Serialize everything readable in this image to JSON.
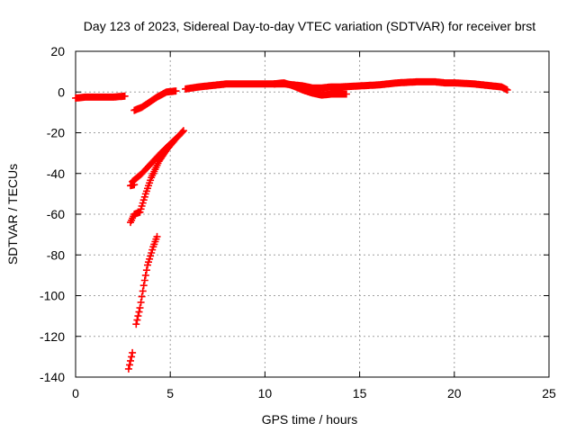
{
  "chart_data": {
    "type": "scatter",
    "title": "Day 123 of 2023, Sidereal Day-to-day VTEC variation (SDTVAR) for receiver brst",
    "xlabel": "GPS time / hours",
    "ylabel": "SDTVAR / TECUs",
    "xlim": [
      0,
      25
    ],
    "ylim": [
      -140,
      20
    ],
    "xticks": [
      0,
      5,
      10,
      15,
      20,
      25
    ],
    "yticks": [
      -140,
      -120,
      -100,
      -80,
      -60,
      -40,
      -20,
      0,
      20
    ],
    "grid": true,
    "marker": "+",
    "color": "#ff0000",
    "series": [
      {
        "segments": [
          [
            [
              0.0,
              -3.0
            ],
            [
              0.5,
              -2.5
            ],
            [
              1.0,
              -2.5
            ],
            [
              1.5,
              -2.5
            ],
            [
              2.0,
              -2.5
            ],
            [
              2.6,
              -2.0
            ]
          ],
          [
            [
              3.1,
              -9.0
            ],
            [
              3.5,
              -7.5
            ],
            [
              3.9,
              -5.0
            ],
            [
              4.3,
              -2.5
            ],
            [
              4.8,
              0.0
            ],
            [
              5.3,
              0.5
            ]
          ],
          [
            [
              5.8,
              1.5
            ],
            [
              6.5,
              2.5
            ],
            [
              7.0,
              3.0
            ],
            [
              7.5,
              3.5
            ],
            [
              8.0,
              4.0
            ],
            [
              9.0,
              4.0
            ],
            [
              10.0,
              4.0
            ],
            [
              10.5,
              4.0
            ]
          ],
          [
            [
              10.5,
              4.0
            ],
            [
              11.0,
              4.5
            ],
            [
              11.5,
              3.0
            ],
            [
              12.0,
              1.0
            ],
            [
              12.5,
              -0.5
            ],
            [
              13.0,
              -1.5
            ],
            [
              13.5,
              -1.0
            ],
            [
              14.0,
              -1.0
            ],
            [
              14.3,
              -1.0
            ]
          ],
          [
            [
              10.5,
              4.0
            ],
            [
              11.0,
              4.0
            ],
            [
              11.5,
              3.5
            ],
            [
              12.0,
              3.0
            ],
            [
              12.5,
              2.0
            ],
            [
              13.0,
              2.0
            ],
            [
              13.5,
              2.5
            ],
            [
              14.0,
              2.5
            ],
            [
              15.0,
              3.0
            ],
            [
              16.0,
              3.5
            ],
            [
              17.0,
              4.5
            ],
            [
              18.0,
              5.0
            ],
            [
              19.0,
              5.0
            ],
            [
              19.5,
              4.5
            ],
            [
              20.0,
              4.5
            ],
            [
              21.0,
              4.0
            ],
            [
              21.5,
              3.5
            ],
            [
              22.0,
              3.0
            ],
            [
              22.5,
              2.5
            ],
            [
              22.8,
              1.0
            ]
          ],
          [
            [
              3.0,
              -44.0
            ],
            [
              3.5,
              -40.0
            ],
            [
              4.0,
              -35.0
            ],
            [
              4.5,
              -30.0
            ],
            [
              5.0,
              -25.5
            ],
            [
              5.4,
              -22.0
            ],
            [
              5.7,
              -19.0
            ]
          ],
          [
            [
              2.9,
              -46.0
            ],
            [
              3.1,
              -45.5
            ]
          ],
          [
            [
              2.9,
              -64.0
            ],
            [
              3.1,
              -60.0
            ],
            [
              3.4,
              -59.0
            ],
            [
              3.7,
              -50.0
            ],
            [
              4.0,
              -42.0
            ],
            [
              4.4,
              -34.0
            ],
            [
              4.8,
              -28.5
            ],
            [
              5.2,
              -24.0
            ]
          ],
          [
            [
              3.2,
              -114.0
            ],
            [
              3.4,
              -106.0
            ],
            [
              3.6,
              -95.0
            ],
            [
              3.8,
              -85.0
            ],
            [
              4.1,
              -76.0
            ],
            [
              4.3,
              -71.0
            ]
          ],
          [
            [
              2.8,
              -136.0
            ],
            [
              3.0,
              -128.0
            ]
          ]
        ]
      }
    ]
  }
}
